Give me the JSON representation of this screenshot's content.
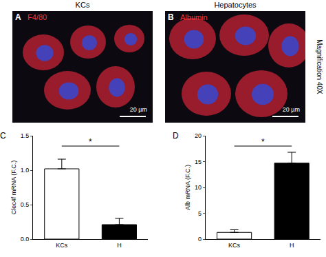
{
  "images": [
    {
      "panel": "A",
      "title": "KCs",
      "stain": "F4/80",
      "scale_bar": "20 µm"
    },
    {
      "panel": "B",
      "title": "Hepatocytes",
      "stain": "Albumin",
      "scale_bar": "20 µm"
    }
  ],
  "magnification": "Magnification 40X",
  "chart_data": [
    {
      "panel": "C",
      "type": "bar",
      "categories": [
        "KCs",
        "H"
      ],
      "values": [
        1.02,
        0.21
      ],
      "errors": [
        0.14,
        0.09
      ],
      "colors": [
        "#ffffff",
        "#000000"
      ],
      "y_label": "Clec4f mRNA (F.C.)",
      "ylim": [
        0,
        1.5
      ],
      "yticks": [
        {
          "value": 0,
          "label": "0.0"
        },
        {
          "value": 0.5,
          "label": "0.5"
        },
        {
          "value": 1,
          "label": "1.0"
        },
        {
          "value": 1.5,
          "label": "1.5"
        }
      ],
      "significance": "*"
    },
    {
      "panel": "D",
      "type": "bar",
      "categories": [
        "KCs",
        "H"
      ],
      "values": [
        1.3,
        14.7
      ],
      "errors": [
        0.5,
        2.1
      ],
      "colors": [
        "#ffffff",
        "#000000"
      ],
      "y_label": "Alb mRNA (F.C.)",
      "ylim": [
        0,
        20
      ],
      "yticks": [
        0,
        5,
        10,
        15,
        20
      ],
      "significance": "*"
    }
  ]
}
